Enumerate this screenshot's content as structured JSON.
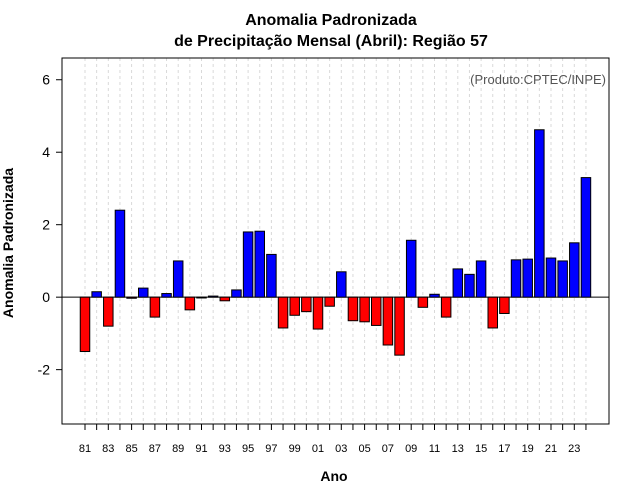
{
  "colors": {
    "positive": "#0000ff",
    "negative": "#ff0000",
    "frame": "#000000",
    "grid": "#d9d9d9",
    "annotation": "#555555"
  },
  "chart_data": {
    "type": "bar",
    "title_line1": "Anomalia Padronizada",
    "title_line2": "de Precipitação Mensal (Abril): Região 57",
    "xlabel": "Ano",
    "ylabel": "Anomalia Padronizada",
    "annotation": "(Produto:CPTEC/INPE)",
    "ylim": [
      -3.5,
      6.6
    ],
    "yticks": [
      -2,
      0,
      2,
      4,
      6
    ],
    "grid": "vertical dotted lines at each year",
    "categories": [
      "81",
      "82",
      "83",
      "84",
      "85",
      "86",
      "87",
      "88",
      "89",
      "90",
      "91",
      "92",
      "93",
      "94",
      "95",
      "96",
      "97",
      "98",
      "99",
      "00",
      "01",
      "02",
      "03",
      "04",
      "05",
      "06",
      "07",
      "08",
      "09",
      "10",
      "11",
      "12",
      "13",
      "14",
      "15",
      "16",
      "17",
      "18",
      "19",
      "20",
      "21",
      "22",
      "23",
      "24"
    ],
    "xtick_labels": [
      "81",
      "83",
      "85",
      "87",
      "89",
      "91",
      "93",
      "95",
      "97",
      "99",
      "01",
      "03",
      "05",
      "07",
      "09",
      "11",
      "13",
      "15",
      "17",
      "19",
      "21",
      "23"
    ],
    "values": [
      -1.5,
      0.15,
      -0.8,
      2.4,
      -0.03,
      0.25,
      -0.55,
      0.1,
      1.0,
      -0.35,
      -0.02,
      0.03,
      -0.1,
      0.2,
      1.8,
      1.82,
      1.18,
      -0.85,
      -0.5,
      -0.4,
      -0.88,
      -0.25,
      0.7,
      -0.65,
      -0.68,
      -0.78,
      -1.32,
      -1.6,
      1.57,
      -0.28,
      0.08,
      -0.55,
      0.78,
      0.63,
      1.0,
      -0.85,
      -0.45,
      1.03,
      1.05,
      4.62,
      1.08,
      1.0,
      1.5,
      3.3
    ]
  }
}
